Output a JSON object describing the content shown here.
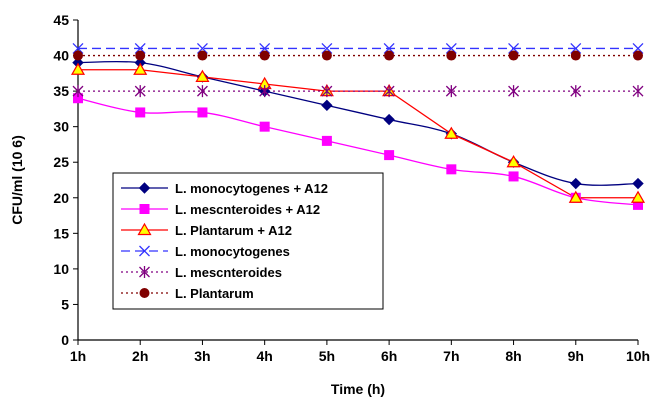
{
  "chart_data": {
    "type": "line",
    "title": "",
    "xlabel": "Time (h)",
    "ylabel": "CFU/ml (10 6)",
    "categories": [
      "1h",
      "2h",
      "3h",
      "4h",
      "5h",
      "6h",
      "7h",
      "8h",
      "9h",
      "10h"
    ],
    "ylim": [
      0,
      45
    ],
    "yticks": [
      "0",
      "5",
      "10",
      "15",
      "20",
      "25",
      "30",
      "35",
      "40",
      "45"
    ],
    "grid": false,
    "legend_position": "lower-left",
    "series": [
      {
        "name": "L. monocytogenes + A12",
        "values": [
          39,
          39,
          37,
          35,
          33,
          31,
          29,
          25,
          22,
          22
        ],
        "color": "#000080",
        "marker": "diamond",
        "dash": "solid",
        "smooth": true
      },
      {
        "name": "L. mescnteroides + A12",
        "values": [
          34,
          32,
          32,
          30,
          28,
          26,
          24,
          23,
          20,
          19
        ],
        "color": "#ff00ff",
        "marker": "square",
        "dash": "solid",
        "smooth": true
      },
      {
        "name": "L. Plantarum + A12",
        "values": [
          38,
          38,
          37,
          36,
          35,
          35,
          29,
          25,
          20,
          20
        ],
        "color": "#ff0000",
        "marker": "triangle",
        "marker_fill": "#ffff00",
        "dash": "solid",
        "smooth": false
      },
      {
        "name": "L. monocytogenes",
        "values": [
          41,
          41,
          41,
          41,
          41,
          41,
          41,
          41,
          41,
          41
        ],
        "color": "#3333ff",
        "marker": "x",
        "dash": "dashed",
        "smooth": false
      },
      {
        "name": "L. mescnteroides",
        "values": [
          35,
          35,
          35,
          35,
          35,
          35,
          35,
          35,
          35,
          35
        ],
        "color": "#800080",
        "marker": "star",
        "dash": "dotted",
        "smooth": false
      },
      {
        "name": "L. Plantarum",
        "values": [
          40,
          40,
          40,
          40,
          40,
          40,
          40,
          40,
          40,
          40
        ],
        "color": "#800000",
        "marker": "circle",
        "dash": "dotted",
        "smooth": false
      }
    ]
  }
}
